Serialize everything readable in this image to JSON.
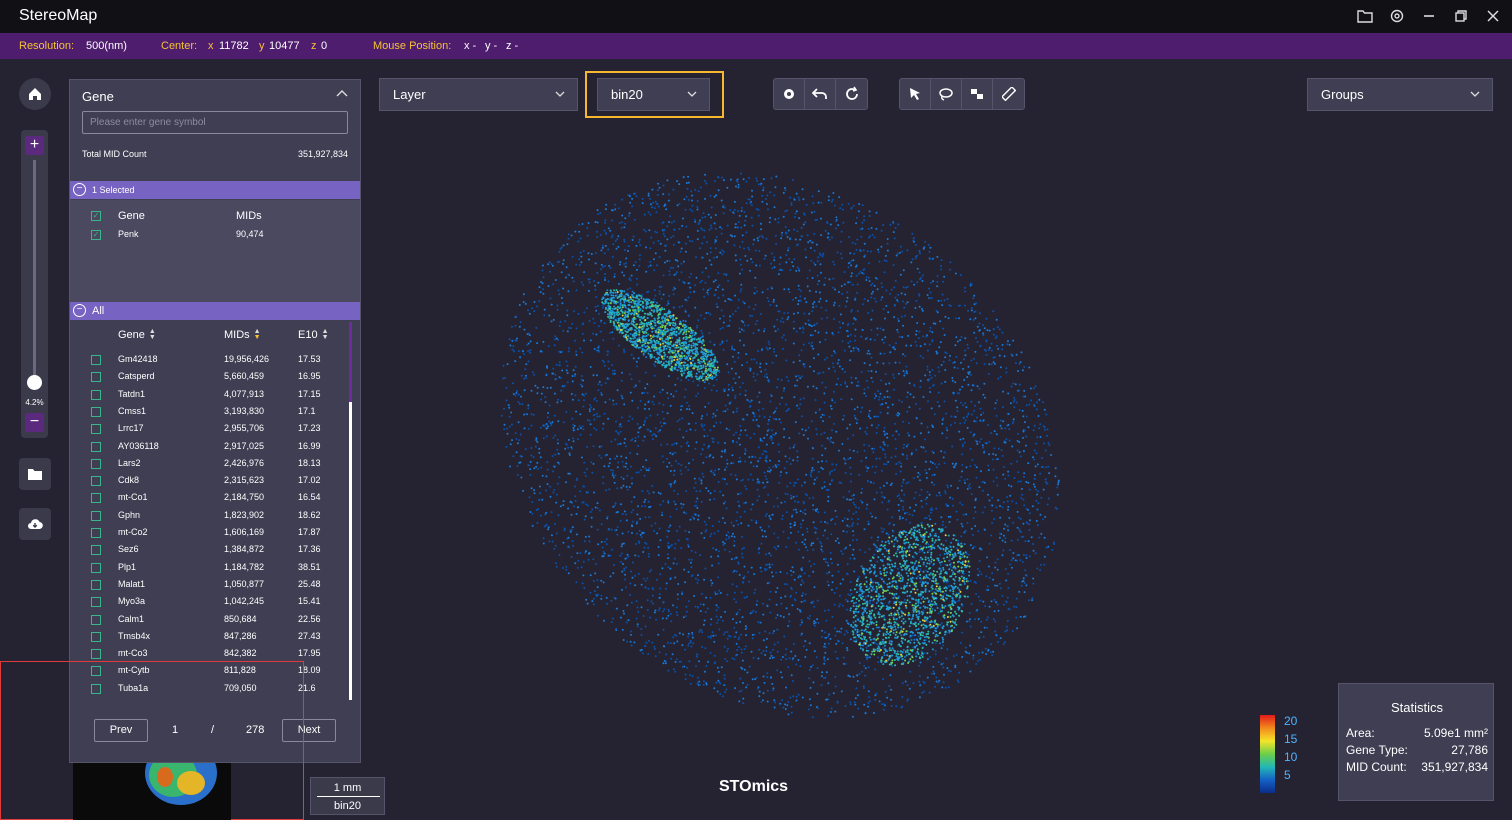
{
  "app": {
    "title": "StereoMap"
  },
  "infobar": {
    "resolution_label": "Resolution:",
    "resolution_value": "500(nm)",
    "center_label": "Center:",
    "center_x_label": "x",
    "center_x": "11782",
    "center_y_label": "y",
    "center_y": "10477",
    "center_z_label": "z",
    "center_z": "0",
    "mouse_label": "Mouse Position:",
    "mouse_x": "x -",
    "mouse_y": "y -",
    "mouse_z": "z -"
  },
  "zoom": {
    "plus": "+",
    "minus": "−",
    "percent": "4.2%",
    "level": 0.042
  },
  "gene_panel": {
    "title": "Gene",
    "search_placeholder": "Please enter gene symbol",
    "total_label": "Total MID Count",
    "total_value": "351,927,834",
    "selected_label": "1 Selected",
    "selected_headers": {
      "gene": "Gene",
      "mids": "MIDs"
    },
    "selected_rows": [
      {
        "gene": "Penk",
        "mids": "90,474"
      }
    ],
    "all_label": "All",
    "all_headers": {
      "gene": "Gene",
      "mids": "MIDs",
      "e10": "E10"
    },
    "rows": [
      {
        "gene": "Gm42418",
        "mids": "19,956,426",
        "e10": "17.53"
      },
      {
        "gene": "Catsperd",
        "mids": "5,660,459",
        "e10": "16.95"
      },
      {
        "gene": "Tatdn1",
        "mids": "4,077,913",
        "e10": "17.15"
      },
      {
        "gene": "Cmss1",
        "mids": "3,193,830",
        "e10": "17.1"
      },
      {
        "gene": "Lrrc17",
        "mids": "2,955,706",
        "e10": "17.23"
      },
      {
        "gene": "AY036118",
        "mids": "2,917,025",
        "e10": "16.99"
      },
      {
        "gene": "Lars2",
        "mids": "2,426,976",
        "e10": "18.13"
      },
      {
        "gene": "Cdk8",
        "mids": "2,315,623",
        "e10": "17.02"
      },
      {
        "gene": "mt-Co1",
        "mids": "2,184,750",
        "e10": "16.54"
      },
      {
        "gene": "Gphn",
        "mids": "1,823,902",
        "e10": "18.62"
      },
      {
        "gene": "mt-Co2",
        "mids": "1,606,169",
        "e10": "17.87"
      },
      {
        "gene": "Sez6",
        "mids": "1,384,872",
        "e10": "17.36"
      },
      {
        "gene": "Plp1",
        "mids": "1,184,782",
        "e10": "38.51"
      },
      {
        "gene": "Malat1",
        "mids": "1,050,877",
        "e10": "25.48"
      },
      {
        "gene": "Myo3a",
        "mids": "1,042,245",
        "e10": "15.41"
      },
      {
        "gene": "Calm1",
        "mids": "850,684",
        "e10": "22.56"
      },
      {
        "gene": "Tmsb4x",
        "mids": "847,286",
        "e10": "27.43"
      },
      {
        "gene": "mt-Co3",
        "mids": "842,382",
        "e10": "17.95"
      },
      {
        "gene": "mt-Cytb",
        "mids": "811,828",
        "e10": "18.09"
      },
      {
        "gene": "Tuba1a",
        "mids": "709,050",
        "e10": "21.6"
      }
    ],
    "pager": {
      "prev": "Prev",
      "page": "1",
      "sep": "/",
      "total": "278",
      "next": "Next"
    }
  },
  "toolbar": {
    "layer": "Layer",
    "bin": "bin20",
    "groups": "Groups"
  },
  "scale": {
    "length": "1 mm",
    "bin": "bin20"
  },
  "brand": "STOmics",
  "colorbar": {
    "labels": [
      "20",
      "15",
      "10",
      "5"
    ]
  },
  "stats": {
    "title": "Statistics",
    "area_label": "Area:",
    "area_value": "5.09e1 mm²",
    "gene_type_label": "Gene Type:",
    "gene_type_value": "27,786",
    "mid_label": "MID Count:",
    "mid_value": "351,927,834"
  }
}
